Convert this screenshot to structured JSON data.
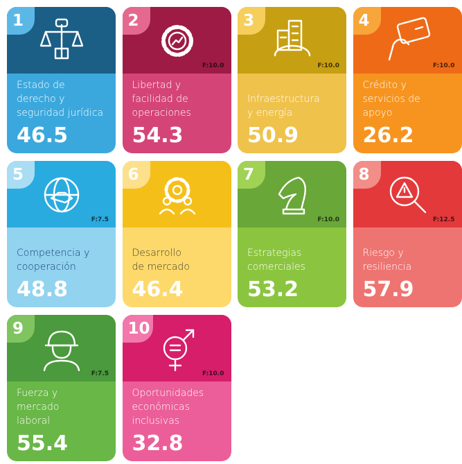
{
  "cards": [
    {
      "number": "1",
      "label_lines": [
        "Estado de",
        "derecho y",
        "seguridad jurídica"
      ],
      "score": 46.5
    },
    {
      "number": "2",
      "label_lines": [
        "Libertad y",
        "facilidad de",
        "operaciones"
      ],
      "score": 54.3,
      "note": "F:10.0"
    },
    {
      "number": "3",
      "label_lines": [
        "Infraestructura",
        "y energía"
      ],
      "score": 50.9,
      "note": "F:10.0"
    },
    {
      "number": "4",
      "label_lines": [
        "Crédito y",
        "servicios de",
        "apoyo"
      ],
      "score": 26.2,
      "note": "F:10.0"
    },
    {
      "number": "5",
      "label_lines": [
        "Competencia y",
        "cooperación"
      ],
      "score": 48.8,
      "note": "F:7.5"
    },
    {
      "number": "6",
      "label_lines": [
        "Desarrollo",
        "de mercado"
      ],
      "score": 46.4
    },
    {
      "number": "7",
      "label_lines": [
        "Estrategias",
        "comerciales"
      ],
      "score": 53.2,
      "note": "F:10.0"
    },
    {
      "number": "8",
      "label_lines": [
        "Riesgo y",
        "resiliencia"
      ],
      "score": 57.9,
      "note": "F:12.5"
    },
    {
      "number": "9",
      "label_lines": [
        "Fuerza y",
        "mercado",
        "laboral"
      ],
      "score": 55.4,
      "note": "F:7.5"
    },
    {
      "number": "10",
      "label_lines": [
        "Oportunidades",
        "económicas",
        "inclusivas"
      ],
      "score": 32.8,
      "note": "F:10.0"
    }
  ]
}
